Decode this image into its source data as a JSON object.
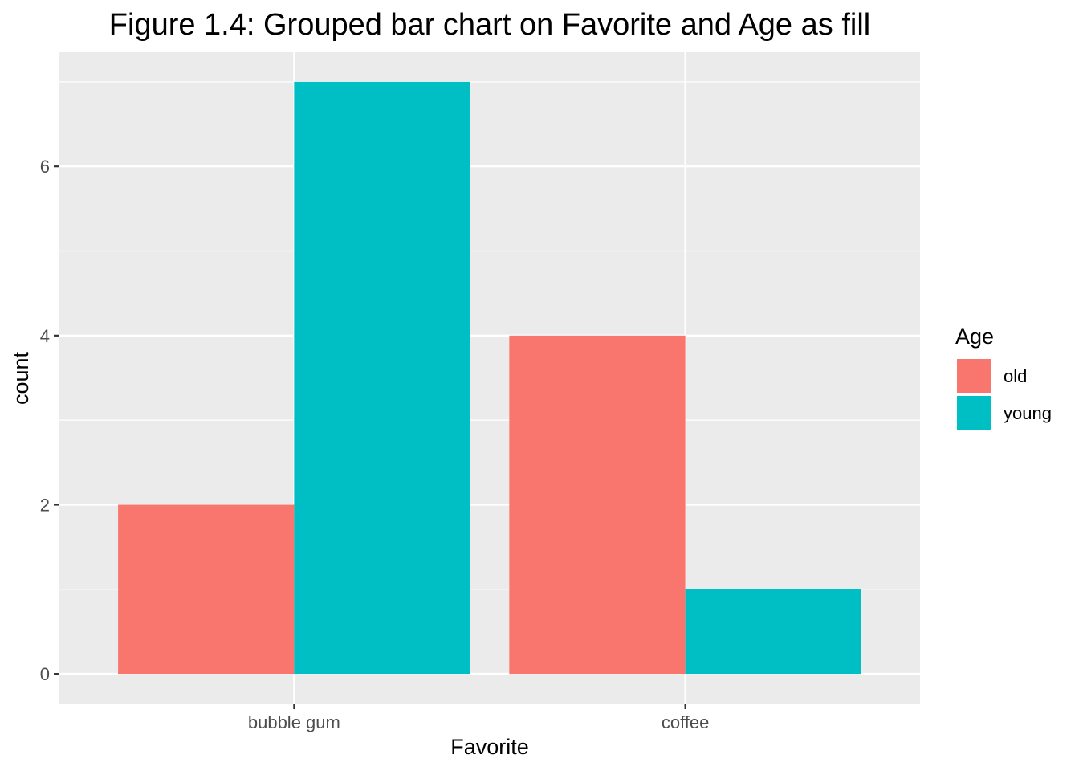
{
  "chart_data": {
    "type": "bar",
    "title": "Figure 1.4: Grouped bar chart on Favorite and Age as fill",
    "xlabel": "Favorite",
    "ylabel": "count",
    "categories": [
      "bubble gum",
      "coffee"
    ],
    "series": [
      {
        "name": "old",
        "values": [
          2,
          4
        ],
        "color": "#F8766D"
      },
      {
        "name": "young",
        "values": [
          7,
          1
        ],
        "color": "#00BFC4"
      }
    ],
    "y_ticks": [
      0,
      2,
      4,
      6
    ],
    "y_tick_labels": [
      "0",
      "2",
      "4",
      "6"
    ],
    "ylim": [
      -0.35,
      7.35
    ],
    "grid": true,
    "legend": {
      "title": "Age",
      "position": "right"
    },
    "panel_background": "#EBEBEB",
    "grid_color": "#FFFFFF"
  }
}
